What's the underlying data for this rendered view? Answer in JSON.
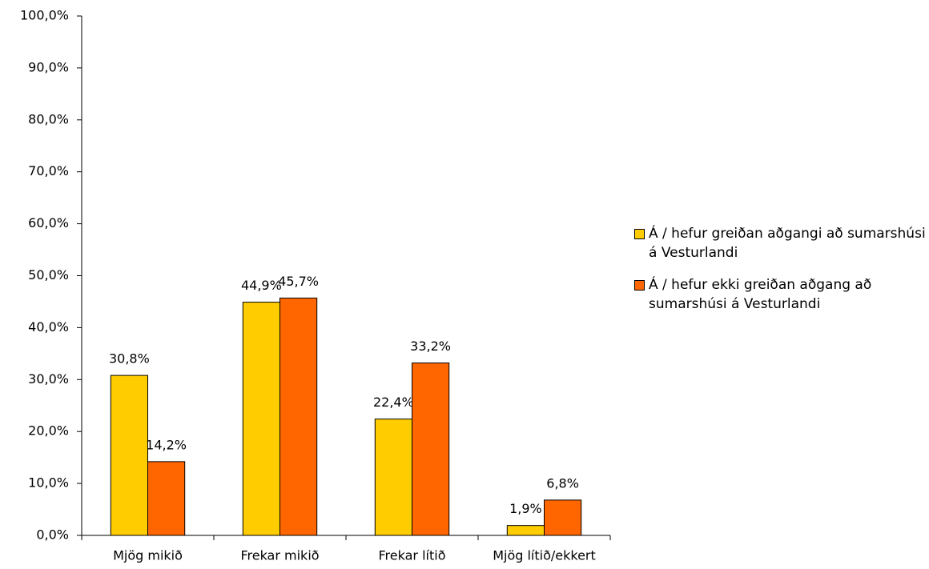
{
  "chart_data": {
    "type": "bar",
    "categories": [
      "Mjög mikið",
      "Frekar mikið",
      "Frekar lítið",
      "Mjög lítið/ekkert"
    ],
    "series": [
      {
        "name": "Á / hefur greiðan aðgangi að sumarshúsi á Vesturlandi",
        "color": "#FFCC00",
        "values": [
          30.8,
          44.9,
          22.4,
          1.9
        ],
        "value_labels": [
          "30,8%",
          "44,9%",
          "22,4%",
          "1,9%"
        ]
      },
      {
        "name": "Á / hefur ekki greiðan aðgang að sumarshúsi á Vesturlandi",
        "color": "#FF6600",
        "values": [
          14.2,
          45.7,
          33.2,
          6.8
        ],
        "value_labels": [
          "14,2%",
          "45,7%",
          "33,2%",
          "6,8%"
        ]
      }
    ],
    "ylim": [
      0,
      100
    ],
    "yticks": [
      {
        "value": 0,
        "label": "0,0%"
      },
      {
        "value": 10,
        "label": "10,0%"
      },
      {
        "value": 20,
        "label": "20,0%"
      },
      {
        "value": 30,
        "label": "30,0%"
      },
      {
        "value": 40,
        "label": "40,0%"
      },
      {
        "value": 50,
        "label": "50,0%"
      },
      {
        "value": 60,
        "label": "60,0%"
      },
      {
        "value": 70,
        "label": "70,0%"
      },
      {
        "value": 80,
        "label": "80,0%"
      },
      {
        "value": 90,
        "label": "90,0%"
      },
      {
        "value": 100,
        "label": "100,0%"
      }
    ],
    "grid": false,
    "legend": "right"
  }
}
